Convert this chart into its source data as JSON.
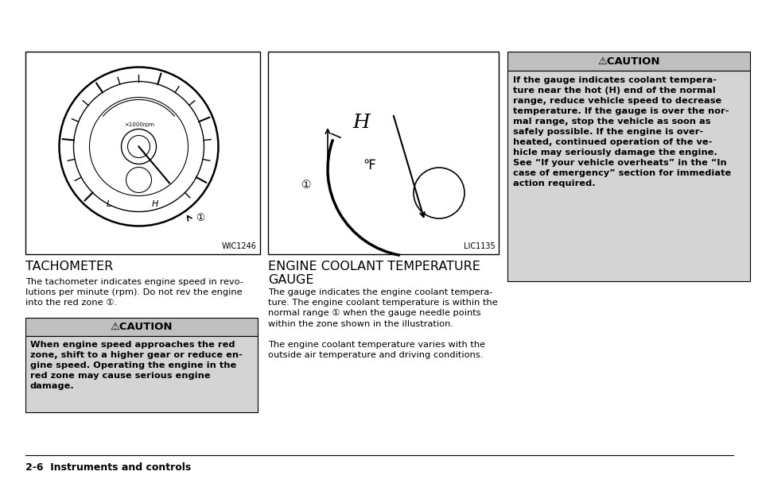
{
  "page_bg": "#ffffff",
  "caution_header_bg": "#c0c0c0",
  "caution_body_bg": "#d4d4d4",
  "border_color": "#000000",
  "text_color": "#000000",
  "left_image_label": "WIC1246",
  "right_image_label": "LIC1135",
  "left_title": "TACHOMETER",
  "right_title": "ENGINE COOLANT TEMPERATURE\nGAUGE",
  "left_body": "The tachometer indicates engine speed in revo-\nlutions per minute (rpm). Do not rev the engine\ninto the red zone ①.",
  "left_caution_header": "⚠CAUTION",
  "left_caution_body": "When engine speed approaches the red\nzone, shift to a higher gear or reduce en-\ngine speed. Operating the engine in the\nred zone may cause serious engine\ndamage.",
  "right_body": "The gauge indicates the engine coolant tempera-\nture. The engine coolant temperature is within the\nnormal range ① when the gauge needle points\nwithin the zone shown in the illustration.\n\nThe engine coolant temperature varies with the\noutside air temperature and driving conditions.",
  "right_caution_header": "⚠CAUTION",
  "right_caution_body": "If the gauge indicates coolant tempera-\nture near the hot (H) end of the normal\nrange, reduce vehicle speed to decrease\ntemperature. If the gauge is over the nor-\nmal range, stop the vehicle as soon as\nsafely possible. If the engine is over-\nheated, continued operation of the ve-\nhicle may seriously damage the engine.\nSee “If your vehicle overheats” in the “In\ncase of emergency” section for immediate\naction required.",
  "footer_text": "2-6  Instruments and controls",
  "fig_width": 9.54,
  "fig_height": 6.08
}
